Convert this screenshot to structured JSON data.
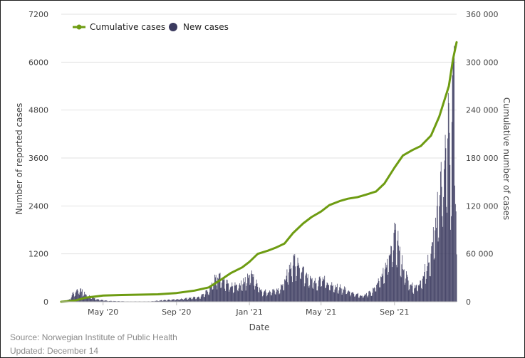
{
  "colors": {
    "cumulative": "#6e9c12",
    "new_cases": "#3b3a5f",
    "grid": "#e2e2e2",
    "text": "#444444"
  },
  "footer": {
    "source": "Source: Norwegian Institute of Public Health",
    "updated": "Updated: December 14"
  },
  "chart_data": {
    "type": "bar",
    "title": "",
    "xlabel": "Date",
    "ylabel": "Number of reported cases",
    "y2label": "Cumulative number of cases",
    "ylim": [
      0,
      7200
    ],
    "y2lim": [
      0,
      360000
    ],
    "y_ticks": [
      "0",
      "1200",
      "2400",
      "3600",
      "4800",
      "6000",
      "7200"
    ],
    "y2_ticks": [
      "0",
      "60 000",
      "120 000",
      "180 000",
      "240 000",
      "300 000",
      "360 000"
    ],
    "x_range": [
      "2020-02-21",
      "2021-12-14"
    ],
    "x_ticks": [
      {
        "date": "2020-05-01",
        "label": "May '20"
      },
      {
        "date": "2020-09-01",
        "label": "Sep '20"
      },
      {
        "date": "2021-01-01",
        "label": "Jan '21"
      },
      {
        "date": "2021-05-01",
        "label": "May '21"
      },
      {
        "date": "2021-09-01",
        "label": "Sep '21"
      }
    ],
    "legend": {
      "placement": "top-left",
      "entries": [
        "Cumulative cases",
        "New cases"
      ]
    },
    "grid": true,
    "series": [
      {
        "name": "New cases",
        "kind": "bar",
        "axis": "left",
        "note": "daily values at key dates, linearly interpolated between points",
        "points": [
          [
            "2020-02-21",
            0
          ],
          [
            "2020-03-05",
            50
          ],
          [
            "2020-03-12",
            200
          ],
          [
            "2020-03-18",
            300
          ],
          [
            "2020-03-26",
            260
          ],
          [
            "2020-04-05",
            150
          ],
          [
            "2020-04-20",
            60
          ],
          [
            "2020-05-10",
            20
          ],
          [
            "2020-06-15",
            8
          ],
          [
            "2020-07-20",
            10
          ],
          [
            "2020-08-10",
            40
          ],
          [
            "2020-09-01",
            60
          ],
          [
            "2020-09-20",
            90
          ],
          [
            "2020-10-10",
            120
          ],
          [
            "2020-10-25",
            280
          ],
          [
            "2020-11-05",
            580
          ],
          [
            "2020-11-15",
            610
          ],
          [
            "2020-11-25",
            470
          ],
          [
            "2020-12-05",
            380
          ],
          [
            "2020-12-15",
            430
          ],
          [
            "2020-12-25",
            520
          ],
          [
            "2021-01-04",
            700
          ],
          [
            "2021-01-12",
            480
          ],
          [
            "2021-01-22",
            250
          ],
          [
            "2021-02-05",
            260
          ],
          [
            "2021-02-20",
            300
          ],
          [
            "2021-03-01",
            550
          ],
          [
            "2021-03-10",
            850
          ],
          [
            "2021-03-17",
            1000
          ],
          [
            "2021-03-25",
            850
          ],
          [
            "2021-04-05",
            650
          ],
          [
            "2021-04-15",
            500
          ],
          [
            "2021-04-25",
            480
          ],
          [
            "2021-05-05",
            600
          ],
          [
            "2021-05-12",
            430
          ],
          [
            "2021-05-25",
            380
          ],
          [
            "2021-06-10",
            320
          ],
          [
            "2021-06-25",
            200
          ],
          [
            "2021-07-10",
            150
          ],
          [
            "2021-07-25",
            250
          ],
          [
            "2021-08-05",
            500
          ],
          [
            "2021-08-15",
            800
          ],
          [
            "2021-08-25",
            1200
          ],
          [
            "2021-09-01",
            1750
          ],
          [
            "2021-09-07",
            1500
          ],
          [
            "2021-09-15",
            900
          ],
          [
            "2021-09-25",
            500
          ],
          [
            "2021-10-05",
            350
          ],
          [
            "2021-10-15",
            450
          ],
          [
            "2021-10-25",
            900
          ],
          [
            "2021-11-01",
            1200
          ],
          [
            "2021-11-10",
            2000
          ],
          [
            "2021-11-18",
            3000
          ],
          [
            "2021-11-25",
            3500
          ],
          [
            "2021-12-01",
            4600
          ],
          [
            "2021-12-04",
            3200
          ],
          [
            "2021-12-08",
            6400
          ],
          [
            "2021-12-10",
            5400
          ],
          [
            "2021-12-12",
            4500
          ],
          [
            "2021-12-14",
            1100
          ]
        ]
      },
      {
        "name": "Cumulative cases",
        "kind": "line",
        "axis": "right",
        "points": [
          [
            "2020-02-21",
            0
          ],
          [
            "2020-03-15",
            1500
          ],
          [
            "2020-04-01",
            5000
          ],
          [
            "2020-05-01",
            7800
          ],
          [
            "2020-06-01",
            8500
          ],
          [
            "2020-07-01",
            8900
          ],
          [
            "2020-08-01",
            9400
          ],
          [
            "2020-09-01",
            11000
          ],
          [
            "2020-10-01",
            14000
          ],
          [
            "2020-10-25",
            18000
          ],
          [
            "2020-11-15",
            28000
          ],
          [
            "2020-12-01",
            36000
          ],
          [
            "2020-12-20",
            43000
          ],
          [
            "2021-01-01",
            50000
          ],
          [
            "2021-01-15",
            60000
          ],
          [
            "2021-02-01",
            64000
          ],
          [
            "2021-02-15",
            68000
          ],
          [
            "2021-03-01",
            73000
          ],
          [
            "2021-03-15",
            86000
          ],
          [
            "2021-04-01",
            98000
          ],
          [
            "2021-04-15",
            106000
          ],
          [
            "2021-05-01",
            113000
          ],
          [
            "2021-05-15",
            121000
          ],
          [
            "2021-06-01",
            126000
          ],
          [
            "2021-06-15",
            129000
          ],
          [
            "2021-07-01",
            131000
          ],
          [
            "2021-07-15",
            134000
          ],
          [
            "2021-08-01",
            138000
          ],
          [
            "2021-08-15",
            148000
          ],
          [
            "2021-09-01",
            168000
          ],
          [
            "2021-09-15",
            183000
          ],
          [
            "2021-10-01",
            190000
          ],
          [
            "2021-10-15",
            195000
          ],
          [
            "2021-11-01",
            208000
          ],
          [
            "2021-11-15",
            232000
          ],
          [
            "2021-12-01",
            270000
          ],
          [
            "2021-12-08",
            304000
          ],
          [
            "2021-12-14",
            325000
          ]
        ]
      }
    ]
  }
}
